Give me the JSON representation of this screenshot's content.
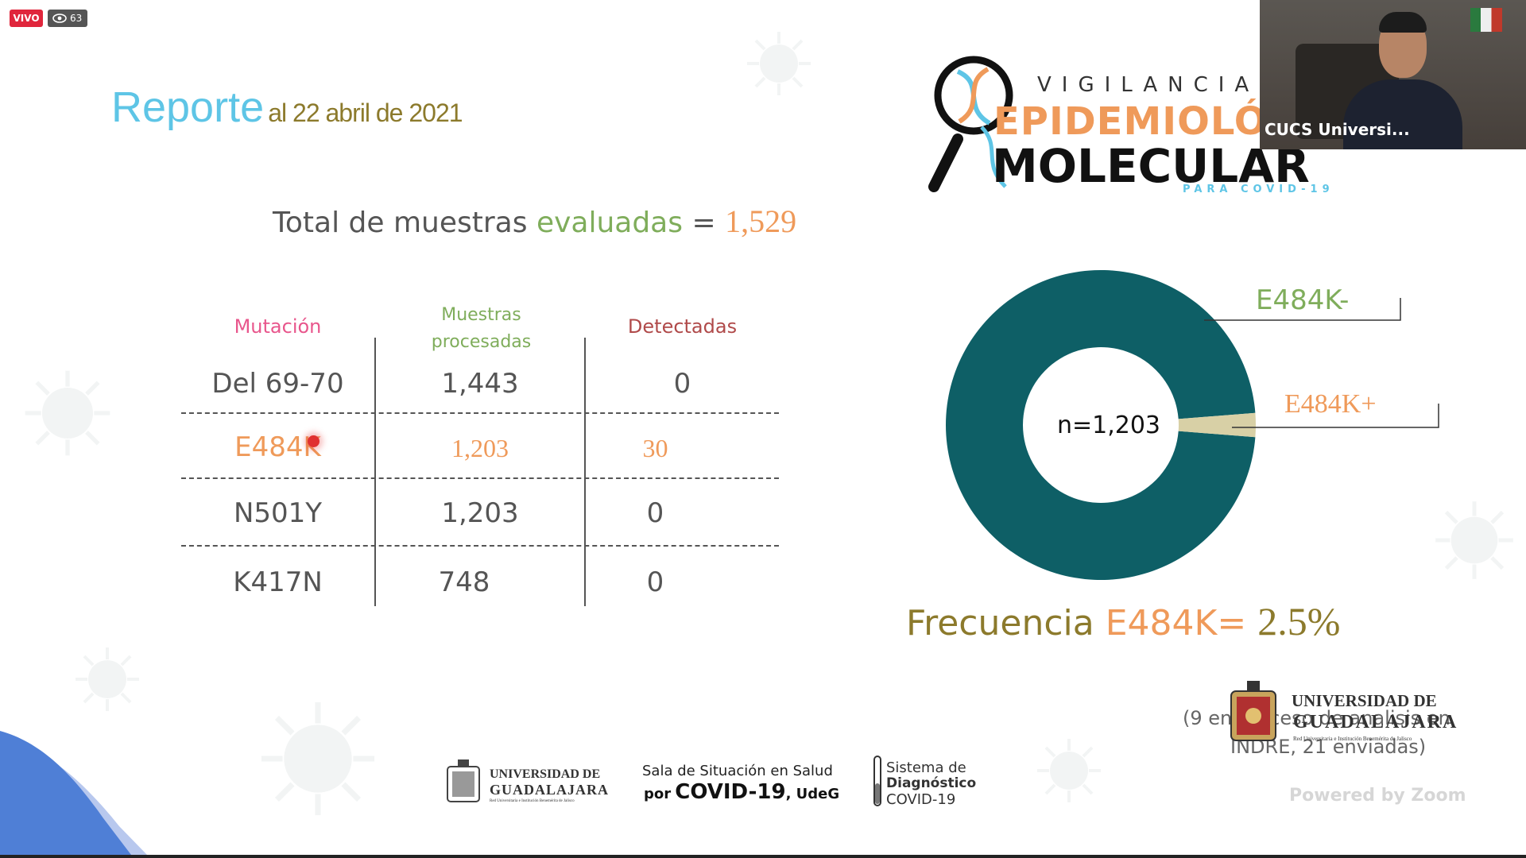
{
  "live_badge": {
    "label": "VIVO",
    "viewers": "63"
  },
  "report": {
    "word": "Reporte",
    "date": "al 22 abril de 2021"
  },
  "total": {
    "prefix": "Total de muestras ",
    "highlight": "evaluadas",
    "equals": " = ",
    "value": "1,529"
  },
  "logo": {
    "line1": "VIGILANCIA",
    "line2": "EPIDEMIOLÓGICA",
    "line3": "MOLECULAR",
    "line4": "PARA COVID-19"
  },
  "table": {
    "headers": [
      "Mutación",
      "Muestras procesadas",
      "Detectadas"
    ],
    "rows": [
      {
        "mutation": "Del 69-70",
        "processed": "1,443",
        "detected": "0"
      },
      {
        "mutation": "E484K",
        "processed": "1,203",
        "detected": "30"
      },
      {
        "mutation": "N501Y",
        "processed": "1,203",
        "detected": "0"
      },
      {
        "mutation": "K417N",
        "processed": "748",
        "detected": "0"
      }
    ]
  },
  "chart_data": {
    "type": "pie",
    "categories": [
      "E484K-",
      "E484K+"
    ],
    "values": [
      1173,
      30
    ],
    "center_label": "n=1,203",
    "colors": [
      "#0e5f66",
      "#d8d0a6"
    ]
  },
  "frequency": {
    "label": "Frecuencia ",
    "mutation": "E484K= ",
    "value": "2.5%"
  },
  "footnote": {
    "line1": "(9 en proceso de analisis en",
    "line2": "INDRE, 21 enviadas)"
  },
  "udg_logo": {
    "line1": "UNIVERSIDAD DE",
    "line2": "GUADALAJARA",
    "line3": "Red Universitaria e Institución Benemérita de Jalisco"
  },
  "footer_logos": {
    "udg_line1": "UNIVERSIDAD DE",
    "udg_line2": "GUADALAJARA",
    "udg_line3": "Red Universitaria e Institución Benemérita de Jalisco",
    "sala_line1": "Sala de Situación en Salud",
    "sala_line2_por": "por",
    "sala_line2_covid": "COVID-19",
    "sala_line2_udeg": ", UdeG",
    "sistema_line1": "Sistema de",
    "sistema_line2": "Diagnóstico",
    "sistema_line3": "COVID-19"
  },
  "video": {
    "name": "CUCS Universi..."
  },
  "watermark": "Powered by Zoom",
  "colors": {
    "teal": "#0e5f66",
    "orange": "#ef9a5a",
    "green": "#7fad5b",
    "pink": "#e8568c",
    "cyan": "#5ec5e6",
    "olive": "#8c7a2c",
    "darkred": "#b04a4a"
  }
}
